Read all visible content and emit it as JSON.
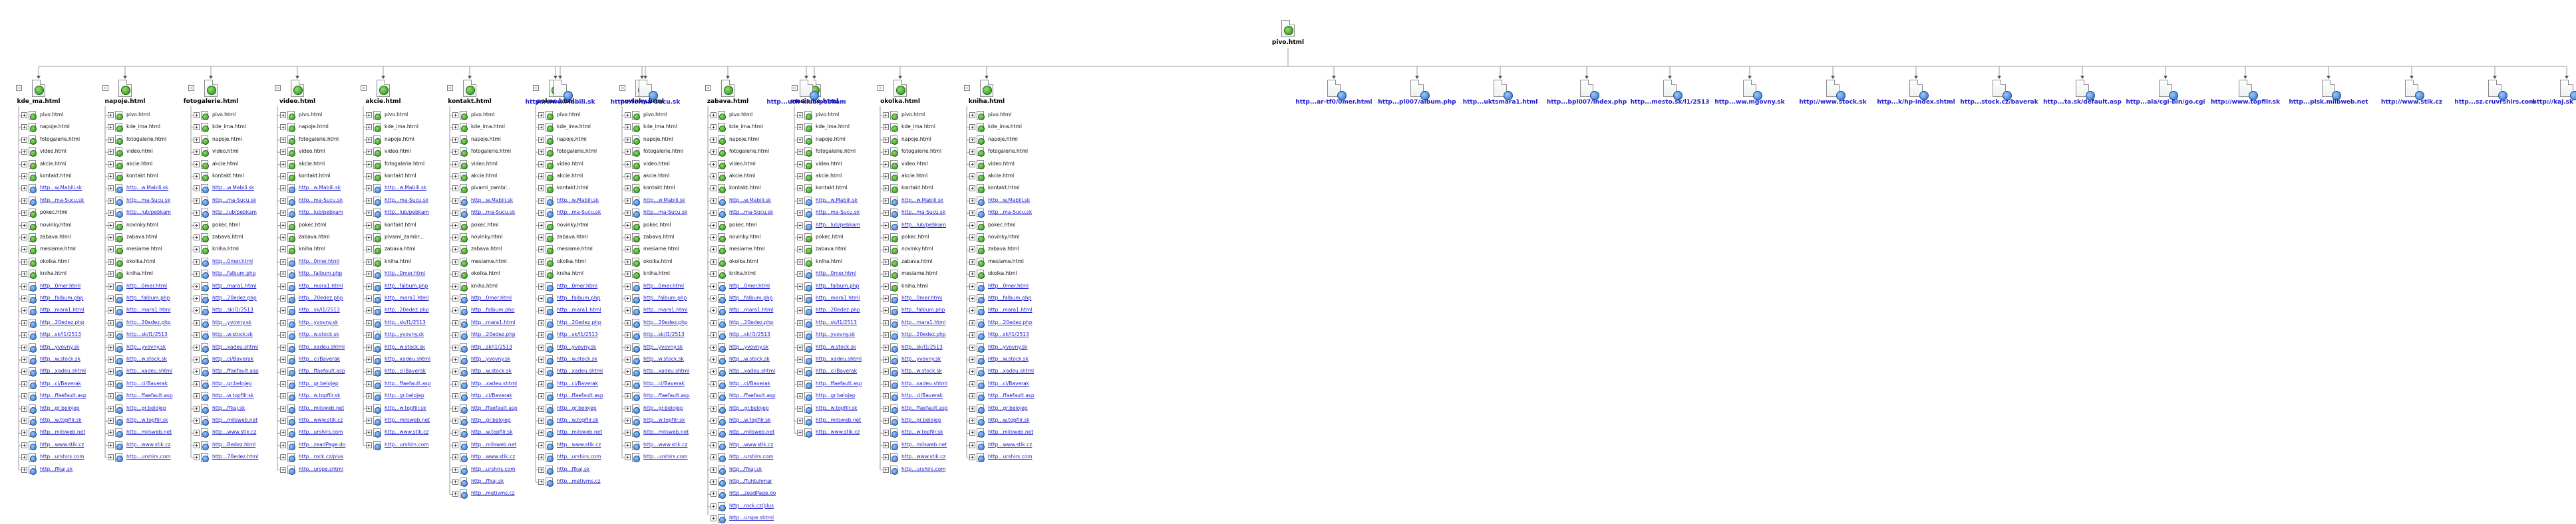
{
  "root": {
    "label": "pivo.html"
  },
  "expanded": [
    {
      "label": "kde_ma.html",
      "items": [
        "pivo.html",
        "napoje.html",
        "fotogalerie.html",
        "video.html",
        "akcie.html",
        "kontakt.html",
        "http...w.Mabili.sk",
        "http...ma-Sucu.sk",
        "pokec.html",
        "novinky.html",
        "zabava.html",
        "mesiame.html",
        "okolka.html",
        "kniha.html",
        "http...0mer.html",
        "http...falbum.php",
        "http...mara1.html",
        "http...20edez.php",
        "http...sk/l1/2513",
        "http...yvovny.sk",
        "http...w.stock.sk",
        "http...xadeu.shtml",
        "http...ci/Baverak",
        "http...ffaefault.asp",
        "http...gr.belojep",
        "http...w.topfilr.sk",
        "http...milsweb.net",
        "http...www.stik.cz",
        "http...urshirs.com",
        "http...ffkaj.sk"
      ]
    },
    {
      "label": "napoje.html",
      "items": [
        "pivo.html",
        "kde_ima.html",
        "fotogalerie.html",
        "video.html",
        "akcie.html",
        "kontakt.html",
        "http...w.Mabili.sk",
        "http...ma-Sucu.sk",
        "http...lub/pebkam",
        "novinky.html",
        "zabava.html",
        "mesiame.html",
        "okolka.html",
        "kniha.html",
        "http...0mer.html",
        "http...falbum.php",
        "http...mara1.html",
        "http...20edez.php",
        "http...sk/l1/2513",
        "http...yvovny.sk",
        "http...w.stock.sk",
        "http...xadeu.shtml",
        "http...ci/Baverak",
        "http...ffaefault.asp",
        "http...gr.belojep",
        "http...w.topfilr.sk",
        "http...milsweb.net",
        "http...www.stik.cz",
        "http...urshirs.com"
      ]
    },
    {
      "label": "fotogalerie.html",
      "items": [
        "pivo.html",
        "kde_ima.html",
        "napoje.html",
        "video.html",
        "akcie.html",
        "kontakt.html",
        "http...w.Mabili.sk",
        "http...ma-Sucu.sk",
        "http...lub/pebkam",
        "pokec.html",
        "zabava.html",
        "kniha.html",
        "http...0mer.html",
        "http...falbum.php",
        "http...mara1.html",
        "http...20edez.php",
        "http...sk/l1/2513",
        "http...yvovny.sk",
        "http...w.stock.sk",
        "http...xadeu.shtml",
        "http...ci/Baverak",
        "http...ffaefault.asp",
        "http...gr.belojep",
        "http...w.topfilr.sk",
        "http...ffkaj.sk",
        "http...milsweb.net",
        "http...www.stik.cz",
        "http...Bedez.html",
        "http...70edez.html"
      ]
    },
    {
      "label": "video.html",
      "items": [
        "pivo.html",
        "napoje.html",
        "fotogalerie.html",
        "video.html",
        "akcie.html",
        "kontakt.html",
        "http...w.Mabili.sk",
        "http...ma-Sucu.sk",
        "http...lub/pebkam",
        "pokec.html",
        "zabava.html",
        "kniha.html",
        "http...0mer.html",
        "http...falbum.php",
        "http...mara1.html",
        "http...20edez.php",
        "http...sk/l1/2513",
        "http...yvovny.sk",
        "http...w.stock.sk",
        "http...xadeu.shtml",
        "http...ci/Baverak",
        "http...ffaefault.asp",
        "http...gr.belojep",
        "http...w.topfilr.sk",
        "http...milsweb.net",
        "http...www.stik.cz",
        "http...urshirs.com",
        "http...zeadPage.do",
        "http...rock.cz/plus",
        "http...urspe.shtml"
      ]
    },
    {
      "label": "akcie.html",
      "items": [
        "pivo.html",
        "kde_ima.html",
        "napoje.html",
        "video.html",
        "fotogalerie.html",
        "kontakt.html",
        "http...w.Mabili.sk",
        "http...ma-Sucu.sk",
        "http...lub/pebkam",
        "kontakt.html",
        "pivami_zambr...",
        "zabava.html",
        "kniha.html",
        "http...0mer.html",
        "http...falbum.php",
        "http...mara1.html",
        "http...20edez.php",
        "http...sk/l1/2513",
        "http...yvovny.sk",
        "http...w.stock.sk",
        "http...xadeu.shtml",
        "http...ci/Baverak",
        "http...ffaefault.asp",
        "http...gr.belojep",
        "http...w.topfilr.sk",
        "http...milsweb.net",
        "http...www.stik.cz",
        "http...urshirs.com"
      ]
    },
    {
      "label": "kontakt.html",
      "items": [
        "pivo.html",
        "kde_ima.html",
        "napoje.html",
        "fotogalerie.html",
        "video.html",
        "akcie.html",
        "pivami_zambr...",
        "http...w.Mabili.sk",
        "http...ma-Sucu.sk",
        "pokec.html",
        "novinky.html",
        "zabava.html",
        "mesiame.html",
        "okolka.html",
        "kniha.html",
        "http...0mer.html",
        "http...falbum.php",
        "http...mara1.html",
        "http...20edez.php",
        "http...sk/l1/2513",
        "http...yvovny.sk",
        "http...w.stock.sk",
        "http...xadeu.shtml",
        "http...ci/Baverak",
        "http...ffaefault.asp",
        "http...gr.belojep",
        "http...w.topfilr.sk",
        "http...milsweb.net",
        "http...www.stik.cz",
        "http...urshirs.com",
        "http...ffkaj.sk",
        "http...metivms.cz"
      ]
    },
    {
      "label": "pokec.html",
      "items": [
        "pivo.html",
        "kde_ima.html",
        "napoje.html",
        "fotogalerie.html",
        "video.html",
        "akcie.html",
        "kontakt.html",
        "http...w.Mabili.sk",
        "http...ma-Sucu.sk",
        "novinky.html",
        "zabava.html",
        "mesiame.html",
        "okolka.html",
        "kniha.html",
        "http...0mer.html",
        "http...falbum.php",
        "http...mara1.html",
        "http...20edez.php",
        "http...sk/l1/2513",
        "http...yvovny.sk",
        "http...w.stock.sk",
        "http...xadeu.shtml",
        "http...ci/Baverak",
        "http...ffaefault.asp",
        "http...gr.belojep",
        "http...w.topfilr.sk",
        "http...milsweb.net",
        "http...www.stik.cz",
        "http...urshirs.com",
        "http...ffkaj.sk",
        "http...metivms.cz"
      ]
    },
    {
      "label": "novinky.html",
      "items": [
        "pivo.html",
        "kde_ima.html",
        "napoje.html",
        "fotogalerie.html",
        "video.html",
        "akcie.html",
        "kontakt.html",
        "http...w.Mabili.sk",
        "http...ma-Sucu.sk",
        "pokec.html",
        "zabava.html",
        "mesiame.html",
        "okolka.html",
        "kniha.html",
        "http...0mer.html",
        "http...falbum.php",
        "http...mara1.html",
        "http...20edez.php",
        "http...sk/l1/2513",
        "http...yvovny.sk",
        "http...w.stock.sk",
        "http...xadeu.shtml",
        "http...ci/Baverak",
        "http...ffaefault.asp",
        "http...gr.belojep",
        "http...w.topfilr.sk",
        "http...milsweb.net",
        "http...www.stik.cz",
        "http...urshirs.com"
      ]
    },
    {
      "label": "zabava.html",
      "items": [
        "pivo.html",
        "kde_ima.html",
        "napoje.html",
        "fotogalerie.html",
        "video.html",
        "akcie.html",
        "kontakt.html",
        "http...w.Mabili.sk",
        "http...ma-Sucu.sk",
        "pokec.html",
        "novinky.html",
        "mesiame.html",
        "okolka.html",
        "kniha.html",
        "http...0mer.html",
        "http...falbum.php",
        "http...mara1.html",
        "http...20edez.php",
        "http...sk/l1/2513",
        "http...yvovny.sk",
        "http...w.stock.sk",
        "http...xadeu.shtml",
        "http...ci/Baverak",
        "http...ffaefault.asp",
        "http...gr.belojep",
        "http...w.topfilr.sk",
        "http...milsweb.net",
        "http...www.stik.cz",
        "http...urshirs.com",
        "http...ffkaj.sk",
        "http...ffuhtuhmar",
        "http...zeadPage.do",
        "http...rock.cz/plus",
        "http...urspe.shtml"
      ]
    },
    {
      "label": "mesiame.html",
      "items": [
        "pivo.html",
        "kde_ima.html",
        "napoje.html",
        "fotogalerie.html",
        "video.html",
        "akcie.html",
        "kontakt.html",
        "http...w.Mabili.sk",
        "http...ma-Sucu.sk",
        "http...lub/pebkam",
        "pokec.html",
        "zabava.html",
        "kniha.html",
        "http...0mer.html",
        "http...falbum.php",
        "http...mara1.html",
        "http...20edez.php",
        "http...sk/l1/2513",
        "http...yvovny.sk",
        "http...w.stock.sk",
        "http...xadeu.shtml",
        "http...ci/Baverak",
        "http...ffaefault.asp",
        "http...gr.belojep",
        "http...w.topfilr.sk",
        "http...milsweb.net",
        "http...www.stik.cz"
      ]
    },
    {
      "label": "okolka.html",
      "items": [
        "pivo.html",
        "kde_ima.html",
        "napoje.html",
        "fotogalerie.html",
        "video.html",
        "akcie.html",
        "kontakt.html",
        "http...w.Mabili.sk",
        "http...ma-Sucu.sk",
        "http...lub/pebkam",
        "pokec.html",
        "novinky.html",
        "zabava.html",
        "mesiame.html",
        "kniha.html",
        "http...0mer.html",
        "http...falbum.php",
        "http...mara1.html",
        "http...20edez.php",
        "http...sk/l1/2513",
        "http...yvovny.sk",
        "http...w.stock.sk",
        "http...xadeu.shtml",
        "http...ci/Baverak",
        "http...ffaefault.asp",
        "http...gr.belojep",
        "http...w.topfilr.sk",
        "http...milsweb.net",
        "http...www.stik.cz",
        "http...urshirs.com"
      ]
    },
    {
      "label": "kniha.html",
      "items": [
        "pivo.html",
        "kde_ima.html",
        "napoje.html",
        "fotogalerie.html",
        "video.html",
        "akcie.html",
        "kontakt.html",
        "http...w.Mabili.sk",
        "http...ma-Sucu.sk",
        "pokec.html",
        "novinky.html",
        "zabava.html",
        "mesiame.html",
        "okolka.html",
        "http...0mer.html",
        "http...falbum.php",
        "http...mara1.html",
        "http...20edez.php",
        "http...sk/l1/2513",
        "http...yvovny.sk",
        "http...w.stock.sk",
        "http...xadeu.shtml",
        "http...ci/Baverak",
        "http...ffaefault.asp",
        "http...gr.belojep",
        "http...w.topfilr.sk",
        "http...milsweb.net",
        "http...www.stik.cz",
        "http...urshirs.com"
      ]
    }
  ],
  "links": [
    "http://www.Mabili.sk",
    "http://forma-Sucu.sk",
    "http...uch-klub/pebkam",
    "http...ar-tf0/0mer.html",
    "http...pl007/album.php",
    "http...uktsmara1.html",
    "http...bpl007/index.php",
    "http...mesto.sk/l1/2513",
    "http...ww.mgovny.sk",
    "http://www.stock.sk",
    "http...k/hp-index.shtml",
    "http...stock.cz/baverak",
    "http...ta.sk/default.asp",
    "http...ala/cgi-bin/go.cgi",
    "http://www.topfilr.sk",
    "http...plsk.milbweb.net",
    "http://www.stik.cz",
    "http...sz.cruvrshirs.com",
    "http://kaj.sk"
  ]
}
